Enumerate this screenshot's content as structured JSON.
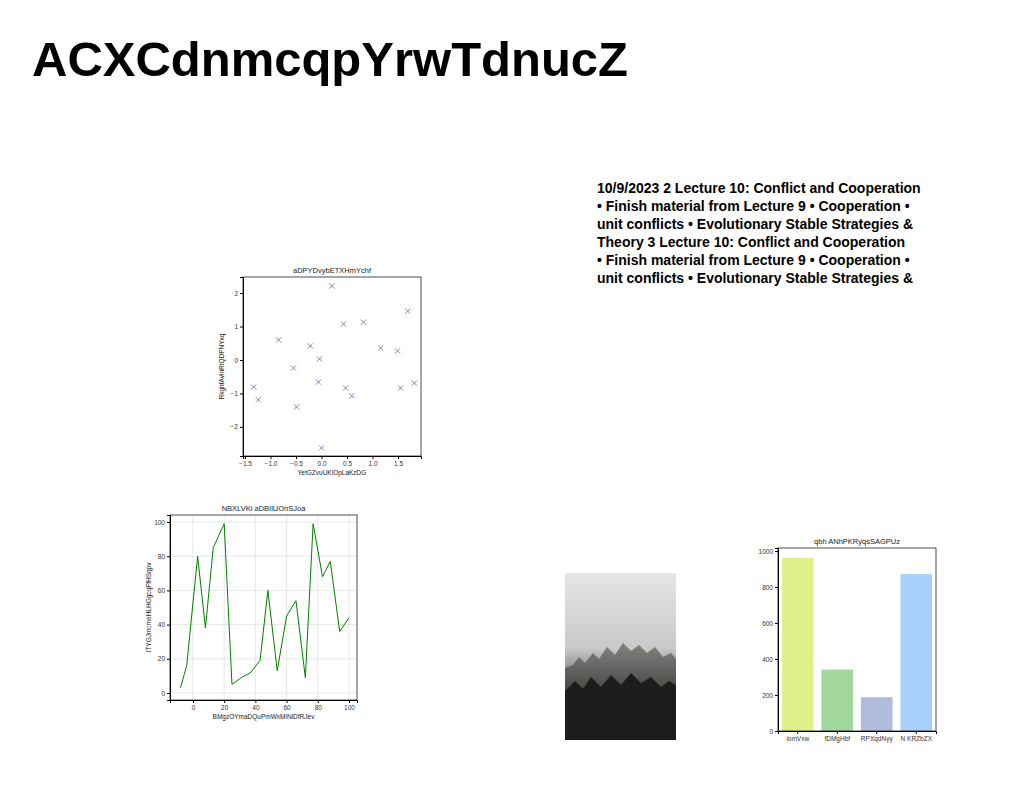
{
  "title": "ACXCdnmcqpYrwTdnucZ",
  "text": {
    "lines": [
      "10/9/2023 2 Lecture 10: Conflict and Cooperation",
      "• Finish material from Lecture 9 • Cooperation •",
      "unit conflicts • Evolutionary Stable Strategies &",
      "Theory 3 Lecture 10: Conflict and Cooperation",
      "• Finish material from Lecture 9 • Cooperation •",
      "unit conflicts • Evolutionary Stable Strategies &"
    ]
  },
  "chart_data": [
    {
      "type": "scatter",
      "title": "aDPYDvybETXHmYchf",
      "x_label": "YetGZvuUKlOpLaKzDG",
      "y_label": "RkghfAvlnRtQDPNYxq",
      "x": [
        -1.33,
        -1.24,
        -0.84,
        -0.55,
        -0.49,
        -0.22,
        -0.06,
        -0.04,
        0.2,
        0.0,
        0.43,
        0.47,
        0.59,
        0.82,
        1.16,
        1.49,
        1.55,
        1.69,
        1.82
      ],
      "values": [
        -0.81,
        -1.19,
        0.6,
        -0.24,
        -1.4,
        0.42,
        -0.66,
        0.03,
        2.21,
        -2.63,
        1.07,
        -0.84,
        -1.07,
        1.13,
        0.36,
        0.27,
        -0.84,
        1.46,
        -0.69
      ],
      "xlim": [
        -1.54,
        1.95
      ],
      "ylim": [
        -2.87,
        2.48
      ],
      "xticks": [
        {
          "value": -1.5,
          "label": "−1.5"
        },
        {
          "value": -1.0,
          "label": "−1.0"
        },
        {
          "value": -0.5,
          "label": "−0.5"
        },
        {
          "value": 0.0,
          "label": "0.0"
        },
        {
          "value": 0.5,
          "label": "0.5"
        },
        {
          "value": 1.0,
          "label": "1.0"
        },
        {
          "value": 1.5,
          "label": "1.5"
        }
      ],
      "yticks": [
        {
          "value": -2,
          "label": "−2"
        },
        {
          "value": -1,
          "label": "−1"
        },
        0,
        1,
        2
      ],
      "marker": "x",
      "color": "#6b7bb0"
    },
    {
      "type": "line",
      "title": "NBXLVKi aDBIlUOnSJoa",
      "x_label": "BMgzOYmaDQuPmWxMiNiDfRJev",
      "y_label": "ITYGJmcmeHLHGgcqFfHSqpv",
      "x": [
        -8,
        -4,
        3,
        8,
        13,
        20,
        25,
        31,
        37,
        43,
        48,
        54,
        60,
        66,
        72,
        77,
        83,
        88,
        94,
        100
      ],
      "values": [
        3,
        16,
        80,
        38,
        85,
        99,
        5,
        9,
        12,
        19,
        60,
        13,
        45,
        54,
        9,
        99,
        68,
        77,
        36,
        44
      ],
      "xlim": [
        -14.7,
        105.1
      ],
      "ylim": [
        -4.1,
        104.1
      ],
      "xticks": [
        0,
        20,
        40,
        60,
        80,
        100
      ],
      "yticks": [
        0,
        20,
        40,
        60,
        80,
        100
      ],
      "color": "green",
      "grid": true
    },
    {
      "type": "bar",
      "title": "qbh ANhPKRyqsSAGPUz",
      "categories": [
        "iomVxw",
        "fDMgHbf",
        "RPXqdNyy",
        "N KRZbZX"
      ],
      "values": [
        962,
        341,
        188,
        872
      ],
      "colors": [
        "#e1ef8a",
        "#a2d89e",
        "#b0bcdb",
        "#a9cffb"
      ],
      "ylim": [
        0,
        1017
      ],
      "yticks": [
        0,
        200,
        400,
        600,
        800,
        1000
      ]
    }
  ]
}
